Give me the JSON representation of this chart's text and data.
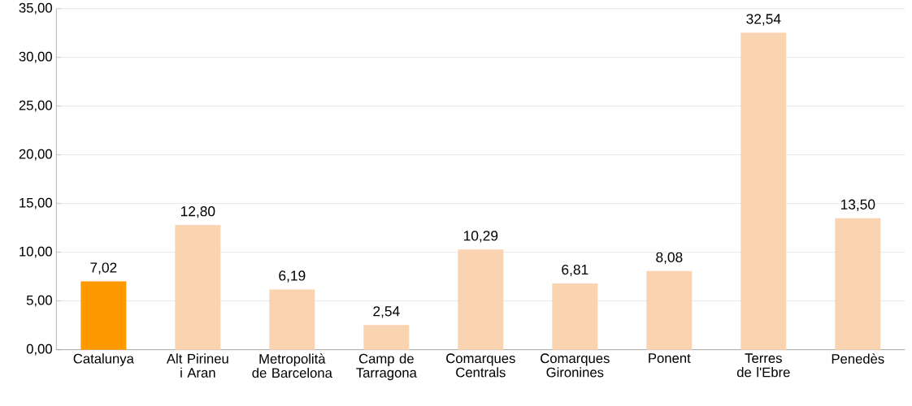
{
  "chart_data": {
    "type": "bar",
    "categories": [
      "Catalunya",
      "Alt Pirineu i Aran",
      "Metropolità de Barcelona",
      "Camp de Tarragona",
      "Comarques Centrals",
      "Comarques Gironines",
      "Ponent",
      "Terres de l'Ebre",
      "Penedès"
    ],
    "values": [
      7.02,
      12.8,
      6.19,
      2.54,
      10.29,
      6.81,
      8.08,
      32.54,
      13.5
    ],
    "colors": [
      "#ff9900",
      "#fad3b0",
      "#fad3b0",
      "#fad3b0",
      "#fad3b0",
      "#fad3b0",
      "#fad3b0",
      "#fad3b0",
      "#fad3b0"
    ],
    "value_labels": [
      "7,02",
      "12,80",
      "6,19",
      "2,54",
      "10,29",
      "6,81",
      "8,08",
      "32,54",
      "13,50"
    ],
    "ylim": [
      0,
      35
    ],
    "yticks": [
      {
        "value": 0,
        "label": "0,00"
      },
      {
        "value": 5,
        "label": "5,00"
      },
      {
        "value": 10,
        "label": "10,00"
      },
      {
        "value": 15,
        "label": "15,00"
      },
      {
        "value": 20,
        "label": "20,00"
      },
      {
        "value": 25,
        "label": "25,00"
      },
      {
        "value": 30,
        "label": "30,00"
      },
      {
        "value": 35,
        "label": "35,00"
      }
    ],
    "grid": "y"
  }
}
